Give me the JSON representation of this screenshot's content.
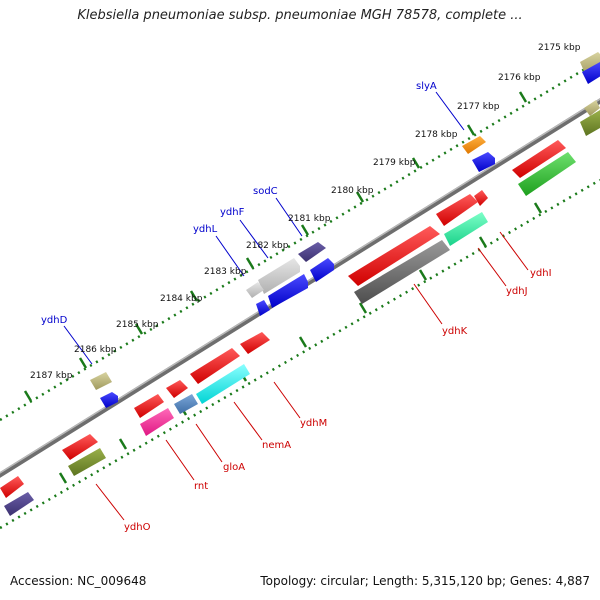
{
  "title": "Klebsiella pneumoniae subsp. pneumoniae MGH 78578, complete ...",
  "footer": {
    "accession": "Accession: NC_009648",
    "summary": "Topology: circular; Length: 5,315,120 bp; Genes: 4,887"
  },
  "scale_ticks": [
    {
      "label": "2175 kbp"
    },
    {
      "label": "2176 kbp"
    },
    {
      "label": "2177 kbp"
    },
    {
      "label": "2178 kbp"
    },
    {
      "label": "2179 kbp"
    },
    {
      "label": "2180 kbp"
    },
    {
      "label": "2181 kbp"
    },
    {
      "label": "2182 kbp"
    },
    {
      "label": "2183 kbp"
    },
    {
      "label": "2184 kbp"
    },
    {
      "label": "2185 kbp"
    },
    {
      "label": "2186 kbp"
    },
    {
      "label": "2187 kbp"
    }
  ],
  "gene_labels": {
    "outer": [
      "slyA",
      "sodC",
      "ydhF",
      "ydhL",
      "ydhD"
    ],
    "inner": [
      "ydhI",
      "ydhJ",
      "ydhK",
      "ydhM",
      "nemA",
      "gloA",
      "rnt",
      "ydhO"
    ]
  },
  "colors": {
    "label_outer": "#0000cc",
    "label_inner": "#cc0000",
    "backbone": "#808080",
    "tick": "#1a7a1a"
  }
}
